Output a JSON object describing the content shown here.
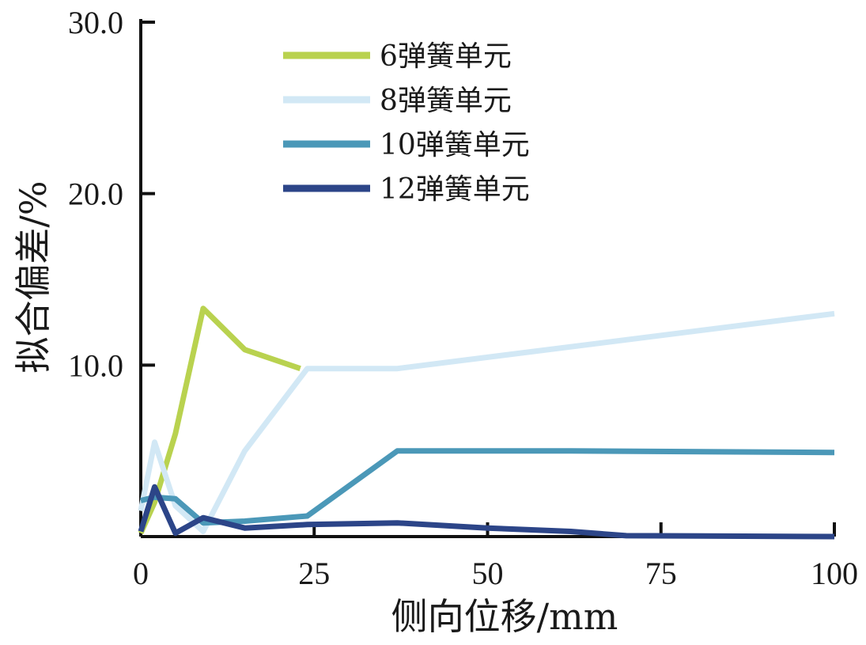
{
  "chart_data": {
    "type": "line",
    "xlabel": "侧向位移/mm",
    "ylabel": "拟合偏差/%",
    "xlim": [
      0,
      100
    ],
    "ylim": [
      0,
      30
    ],
    "x_ticks": [
      "0",
      "25",
      "50",
      "75",
      "100"
    ],
    "y_ticks": [
      "10.0",
      "20.0",
      "30.0"
    ],
    "grid": false,
    "legend_position": "top-left",
    "series": [
      {
        "name": "6弹簧单元",
        "color": "#b9d24f",
        "points": [
          [
            0,
            0.2
          ],
          [
            2,
            2.0
          ],
          [
            5,
            6.0
          ],
          [
            9,
            13.3
          ],
          [
            15,
            10.9
          ],
          [
            23,
            9.8
          ]
        ]
      },
      {
        "name": "8弹簧单元",
        "color": "#d2e8f5",
        "points": [
          [
            0,
            1.5
          ],
          [
            2,
            5.5
          ],
          [
            5,
            1.8
          ],
          [
            9,
            0.3
          ],
          [
            15,
            5.0
          ],
          [
            24,
            9.8
          ],
          [
            37,
            9.8
          ],
          [
            100,
            13.0
          ]
        ]
      },
      {
        "name": "10弹簧单元",
        "color": "#4b98b8",
        "points": [
          [
            0,
            2.1
          ],
          [
            2,
            2.3
          ],
          [
            5,
            2.2
          ],
          [
            9,
            0.8
          ],
          [
            15,
            0.9
          ],
          [
            24,
            1.2
          ],
          [
            37,
            5.0
          ],
          [
            62,
            5.0
          ],
          [
            100,
            4.9
          ]
        ]
      },
      {
        "name": "12弹簧单元",
        "color": "#2c4588",
        "points": [
          [
            0,
            0.3
          ],
          [
            2,
            2.9
          ],
          [
            5,
            0.2
          ],
          [
            9,
            1.1
          ],
          [
            15,
            0.5
          ],
          [
            24,
            0.7
          ],
          [
            37,
            0.8
          ],
          [
            50,
            0.5
          ],
          [
            62,
            0.3
          ],
          [
            70,
            0.05
          ],
          [
            100,
            0.0
          ]
        ]
      }
    ]
  }
}
